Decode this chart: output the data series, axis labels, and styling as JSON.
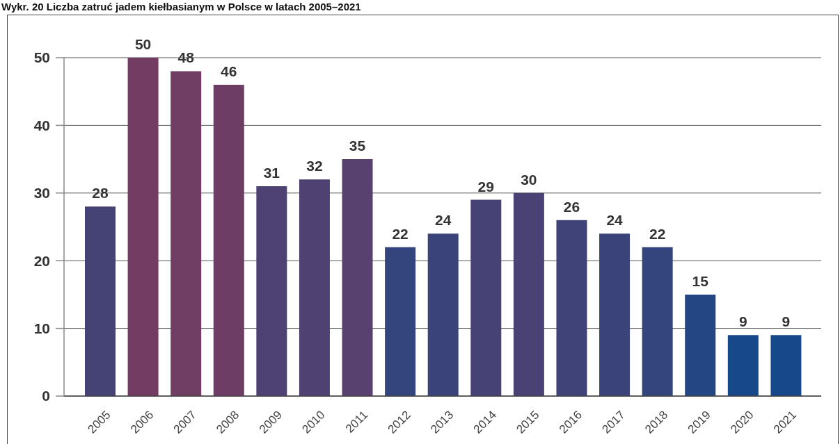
{
  "chart_data": {
    "type": "bar",
    "title": "Wykr. 20 Liczba zatruć jadem kiełbasianym w Polsce w latach 2005–2021",
    "categories": [
      "2005",
      "2006",
      "2007",
      "2008",
      "2009",
      "2010",
      "2011",
      "2012",
      "2013",
      "2014",
      "2015",
      "2016",
      "2017",
      "2018",
      "2019",
      "2020",
      "2021"
    ],
    "values": [
      28,
      50,
      48,
      46,
      31,
      32,
      35,
      22,
      24,
      29,
      30,
      26,
      24,
      22,
      15,
      9,
      9
    ],
    "colors": [
      "#454376",
      "#733c62",
      "#703d64",
      "#6d3d65",
      "#4d4273",
      "#4f4172",
      "#58406f",
      "#34447c",
      "#3a447a",
      "#474275",
      "#4a4274",
      "#3f4378",
      "#3a447a",
      "#34447c",
      "#244683",
      "#17488a",
      "#17488a"
    ],
    "ylim": [
      0,
      50
    ],
    "yticks": [
      0,
      10,
      20,
      30,
      40,
      50
    ],
    "grid": "y",
    "data_labels": true
  }
}
